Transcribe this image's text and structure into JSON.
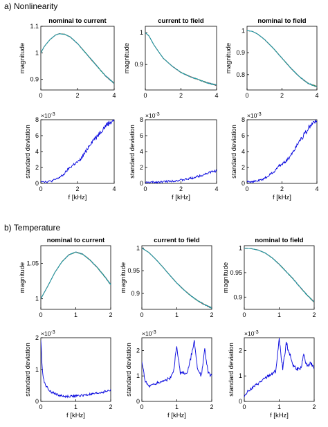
{
  "sections": {
    "a": "a) Nonlinearity",
    "b": "b) Temperature"
  },
  "colors": {
    "magnitude_series": [
      "#1f3f8f",
      "#d9534f",
      "#2ca02c",
      "#8c564b",
      "#17a2b8"
    ],
    "std_line": "#0000dd",
    "axis": "#000000"
  },
  "chart_data": [
    {
      "id": "a-mag-1",
      "type": "line",
      "title": "nominal to current",
      "xlabel": "",
      "ylabel": "magnitude",
      "xlim": [
        0,
        4
      ],
      "ylim": [
        0.86,
        1.1
      ],
      "xticks": [
        0,
        2,
        4
      ],
      "yticks": [
        0.9,
        1,
        1.1
      ],
      "ytick_labels": [
        "0.9",
        "1",
        "1.1"
      ],
      "series": [
        {
          "x": [
            0,
            0.2,
            0.5,
            0.8,
            1.0,
            1.3,
            1.6,
            2.0,
            2.5,
            3.0,
            3.5,
            4.0
          ],
          "values": [
            1.0,
            1.025,
            1.05,
            1.067,
            1.072,
            1.07,
            1.06,
            1.035,
            0.995,
            0.955,
            0.915,
            0.885
          ]
        }
      ]
    },
    {
      "id": "a-mag-2",
      "type": "line",
      "title": "current to field",
      "xlabel": "",
      "ylabel": "magnitude",
      "xlim": [
        0,
        4
      ],
      "ylim": [
        0.82,
        1.02
      ],
      "xticks": [
        0,
        2,
        4
      ],
      "yticks": [
        0.9,
        1
      ],
      "ytick_labels": [
        "0.9",
        "1"
      ],
      "series": [
        {
          "x": [
            0,
            0.2,
            0.5,
            1.0,
            1.5,
            2.0,
            2.5,
            3.0,
            3.5,
            4.0
          ],
          "values": [
            1.0,
            0.99,
            0.96,
            0.92,
            0.895,
            0.875,
            0.862,
            0.852,
            0.842,
            0.835
          ]
        }
      ]
    },
    {
      "id": "a-mag-3",
      "type": "line",
      "title": "nominal to field",
      "xlabel": "",
      "ylabel": "magnitude",
      "xlim": [
        0,
        4
      ],
      "ylim": [
        0.73,
        1.02
      ],
      "xticks": [
        0,
        2,
        4
      ],
      "yticks": [
        0.8,
        0.9,
        1
      ],
      "ytick_labels": [
        "0.8",
        "0.9",
        "1"
      ],
      "series": [
        {
          "x": [
            0,
            0.3,
            0.6,
            1.0,
            1.5,
            2.0,
            2.5,
            3.0,
            3.5,
            4.0
          ],
          "values": [
            1.0,
            0.997,
            0.985,
            0.96,
            0.92,
            0.875,
            0.83,
            0.79,
            0.76,
            0.745
          ]
        }
      ]
    },
    {
      "id": "a-std-1",
      "type": "line",
      "title": "",
      "xlabel": "f [kHz]",
      "ylabel": "standard deviation",
      "xlim": [
        0,
        4
      ],
      "ylim": [
        0,
        8
      ],
      "exponent": "×10",
      "exponent_power": "-3",
      "xticks": [
        0,
        2,
        4
      ],
      "yticks": [
        0,
        2,
        4,
        6,
        8
      ],
      "ytick_labels": [
        "0",
        "2",
        "4",
        "6",
        "8"
      ],
      "series": [
        {
          "x": [
            0,
            0.3,
            0.6,
            0.9,
            1.2,
            1.5,
            1.8,
            2.1,
            2.4,
            2.7,
            3.0,
            3.3,
            3.6,
            4.0
          ],
          "values": [
            0.3,
            0.2,
            0.3,
            0.6,
            1.0,
            1.8,
            2.4,
            2.8,
            3.8,
            5.0,
            5.8,
            6.6,
            7.4,
            8.0
          ]
        }
      ]
    },
    {
      "id": "a-std-2",
      "type": "line",
      "title": "",
      "xlabel": "f [kHz]",
      "ylabel": "standard deviation",
      "xlim": [
        0,
        4
      ],
      "ylim": [
        0,
        8
      ],
      "exponent": "×10",
      "exponent_power": "-3",
      "xticks": [
        0,
        2,
        4
      ],
      "yticks": [
        0,
        2,
        4,
        6,
        8
      ],
      "ytick_labels": [
        "0",
        "2",
        "4",
        "6",
        "8"
      ],
      "series": [
        {
          "x": [
            0,
            0.5,
            1.0,
            1.5,
            2.0,
            2.5,
            3.0,
            3.5,
            4.0
          ],
          "values": [
            0.1,
            0.15,
            0.2,
            0.3,
            0.4,
            0.6,
            0.9,
            1.3,
            1.6
          ]
        }
      ]
    },
    {
      "id": "a-std-3",
      "type": "line",
      "title": "",
      "xlabel": "f [kHz]",
      "ylabel": "standard deviation",
      "xlim": [
        0,
        4
      ],
      "ylim": [
        0,
        8
      ],
      "exponent": "×10",
      "exponent_power": "-3",
      "xticks": [
        0,
        2,
        4
      ],
      "yticks": [
        0,
        2,
        4,
        6,
        8
      ],
      "ytick_labels": [
        "0",
        "2",
        "4",
        "6",
        "8"
      ],
      "series": [
        {
          "x": [
            0,
            0.3,
            0.6,
            0.9,
            1.2,
            1.5,
            1.8,
            2.1,
            2.4,
            2.7,
            3.0,
            3.3,
            3.6,
            4.0
          ],
          "values": [
            0.3,
            0.2,
            0.3,
            0.5,
            0.9,
            1.4,
            2.1,
            2.6,
            3.2,
            4.2,
            5.4,
            6.2,
            7.2,
            8.0
          ]
        }
      ]
    },
    {
      "id": "b-mag-1",
      "type": "line",
      "title": "nominal to current",
      "xlabel": "",
      "ylabel": "magnitude",
      "xlim": [
        0,
        2
      ],
      "ylim": [
        0.985,
        1.075
      ],
      "xticks": [
        0,
        1,
        2
      ],
      "yticks": [
        1,
        1.05
      ],
      "ytick_labels": [
        "1",
        "1.05"
      ],
      "series": [
        {
          "x": [
            0,
            0.2,
            0.4,
            0.6,
            0.8,
            1.0,
            1.2,
            1.4,
            1.6,
            1.8,
            2.0
          ],
          "values": [
            1.0,
            1.018,
            1.037,
            1.052,
            1.062,
            1.066,
            1.063,
            1.055,
            1.045,
            1.033,
            1.02
          ]
        }
      ]
    },
    {
      "id": "b-mag-2",
      "type": "line",
      "title": "current to field",
      "xlabel": "",
      "ylabel": "magnitude",
      "xlim": [
        0,
        2
      ],
      "ylim": [
        0.865,
        1.005
      ],
      "xticks": [
        0,
        1,
        2
      ],
      "yticks": [
        0.9,
        0.95,
        1
      ],
      "ytick_labels": [
        "0.9",
        "0.95",
        "1"
      ],
      "series": [
        {
          "x": [
            0,
            0.2,
            0.4,
            0.6,
            0.8,
            1.0,
            1.2,
            1.4,
            1.6,
            1.8,
            2.0
          ],
          "values": [
            1.0,
            0.99,
            0.975,
            0.958,
            0.94,
            0.923,
            0.908,
            0.895,
            0.884,
            0.875,
            0.868
          ]
        }
      ]
    },
    {
      "id": "b-mag-3",
      "type": "line",
      "title": "nominal to field",
      "xlabel": "",
      "ylabel": "magnitude",
      "xlim": [
        0,
        2
      ],
      "ylim": [
        0.875,
        1.005
      ],
      "xticks": [
        0,
        1,
        2
      ],
      "yticks": [
        0.9,
        0.95,
        1
      ],
      "ytick_labels": [
        "0.9",
        "0.95",
        "1"
      ],
      "series": [
        {
          "x": [
            0,
            0.2,
            0.4,
            0.6,
            0.8,
            1.0,
            1.2,
            1.4,
            1.6,
            1.8,
            2.0
          ],
          "values": [
            1.0,
            0.999,
            0.996,
            0.99,
            0.98,
            0.967,
            0.952,
            0.937,
            0.92,
            0.904,
            0.89
          ]
        }
      ]
    },
    {
      "id": "b-std-1",
      "type": "line",
      "title": "",
      "xlabel": "f [kHz]",
      "ylabel": "standard deviation",
      "xlim": [
        0,
        2
      ],
      "ylim": [
        0,
        2
      ],
      "exponent": "×10",
      "exponent_power": "-3",
      "xticks": [
        0,
        1,
        2
      ],
      "yticks": [
        0,
        1,
        2
      ],
      "ytick_labels": [
        "0",
        "1",
        "2"
      ],
      "series": [
        {
          "x": [
            0,
            0.05,
            0.1,
            0.2,
            0.3,
            0.5,
            0.7,
            1.0,
            1.3,
            1.6,
            1.8,
            2.0
          ],
          "values": [
            1.9,
            0.9,
            0.6,
            0.4,
            0.3,
            0.2,
            0.15,
            0.17,
            0.2,
            0.25,
            0.3,
            0.35
          ]
        }
      ]
    },
    {
      "id": "b-std-2",
      "type": "line",
      "title": "",
      "xlabel": "f [kHz]",
      "ylabel": "standard deviation",
      "xlim": [
        0,
        2
      ],
      "ylim": [
        0,
        2.5
      ],
      "exponent": "×10",
      "exponent_power": "-3",
      "xticks": [
        0,
        1,
        2
      ],
      "yticks": [
        0,
        1,
        2
      ],
      "ytick_labels": [
        "0",
        "1",
        "2"
      ],
      "series": [
        {
          "x": [
            0,
            0.1,
            0.2,
            0.4,
            0.6,
            0.8,
            0.9,
            1.0,
            1.1,
            1.3,
            1.5,
            1.6,
            1.7,
            1.8,
            1.9,
            2.0
          ],
          "values": [
            1.5,
            0.8,
            0.6,
            0.7,
            0.8,
            0.9,
            1.1,
            2.2,
            1.1,
            1.1,
            2.3,
            1.2,
            1.0,
            2.0,
            1.1,
            1.0
          ]
        }
      ]
    },
    {
      "id": "b-std-3",
      "type": "line",
      "title": "",
      "xlabel": "f [kHz]",
      "ylabel": "standard deviation",
      "xlim": [
        0,
        2
      ],
      "ylim": [
        0,
        2.5
      ],
      "exponent": "×10",
      "exponent_power": "-3",
      "xticks": [
        0,
        1,
        2
      ],
      "yticks": [
        0,
        1,
        2
      ],
      "ytick_labels": [
        "0",
        "1",
        "2"
      ],
      "series": [
        {
          "x": [
            0,
            0.1,
            0.3,
            0.5,
            0.7,
            0.9,
            1.0,
            1.1,
            1.2,
            1.4,
            1.6,
            1.7,
            1.8,
            1.9,
            2.0
          ],
          "values": [
            0.2,
            0.4,
            0.6,
            0.8,
            1.0,
            1.2,
            2.4,
            1.3,
            2.3,
            1.4,
            1.2,
            1.8,
            1.4,
            1.5,
            1.3
          ]
        }
      ]
    }
  ]
}
